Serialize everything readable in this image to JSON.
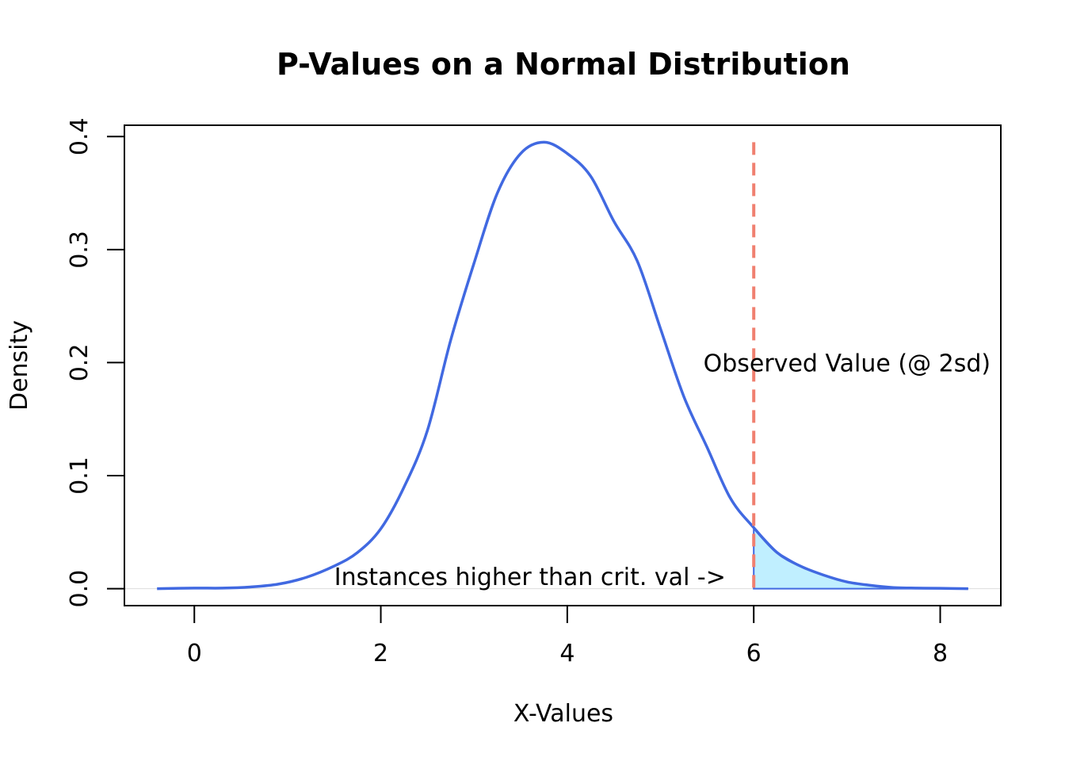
{
  "chart_data": {
    "type": "line",
    "title": "P-Values on a Normal Distribution",
    "xlabel": "X-Values",
    "ylabel": "Density",
    "xlim": [
      -0.75,
      8.65
    ],
    "ylim": [
      -0.015,
      0.41
    ],
    "xticks": [
      0,
      2,
      4,
      6,
      8
    ],
    "yticks": [
      0.0,
      0.1,
      0.2,
      0.3,
      0.4
    ],
    "xtick_labels": [
      "0",
      "2",
      "4",
      "6",
      "8"
    ],
    "ytick_labels": [
      "0.0",
      "0.1",
      "0.2",
      "0.3",
      "0.4"
    ],
    "series": [
      {
        "name": "density",
        "color": "#4169E1",
        "x": [
          -0.4,
          0.0,
          0.3,
          0.6,
          0.9,
          1.2,
          1.5,
          1.75,
          2.0,
          2.25,
          2.5,
          2.75,
          3.0,
          3.25,
          3.5,
          3.75,
          4.0,
          4.25,
          4.5,
          4.75,
          5.0,
          5.25,
          5.5,
          5.75,
          6.0,
          6.25,
          6.5,
          6.75,
          7.0,
          7.25,
          7.5,
          7.75,
          8.0,
          8.3
        ],
        "y": [
          0.0,
          0.0005,
          0.0005,
          0.0015,
          0.004,
          0.01,
          0.02,
          0.032,
          0.053,
          0.09,
          0.14,
          0.22,
          0.288,
          0.35,
          0.385,
          0.395,
          0.385,
          0.365,
          0.325,
          0.29,
          0.23,
          0.17,
          0.125,
          0.08,
          0.054,
          0.032,
          0.02,
          0.012,
          0.006,
          0.003,
          0.001,
          0.0005,
          0.0003,
          0.0
        ]
      }
    ],
    "shaded_region": {
      "x_from": 6.0,
      "color": "#C0EFFF"
    },
    "vline": {
      "x": 6.0,
      "y_top": 0.395,
      "color": "#F08070",
      "style": "dashed"
    },
    "annotations": [
      {
        "text": "Observed Value (@ 2sd)",
        "x": 7.0,
        "y": 0.2,
        "anchor": "middle"
      },
      {
        "text": "Instances higher than crit. val ->",
        "x": 3.6,
        "y": 0.011,
        "anchor": "middle"
      }
    ]
  }
}
